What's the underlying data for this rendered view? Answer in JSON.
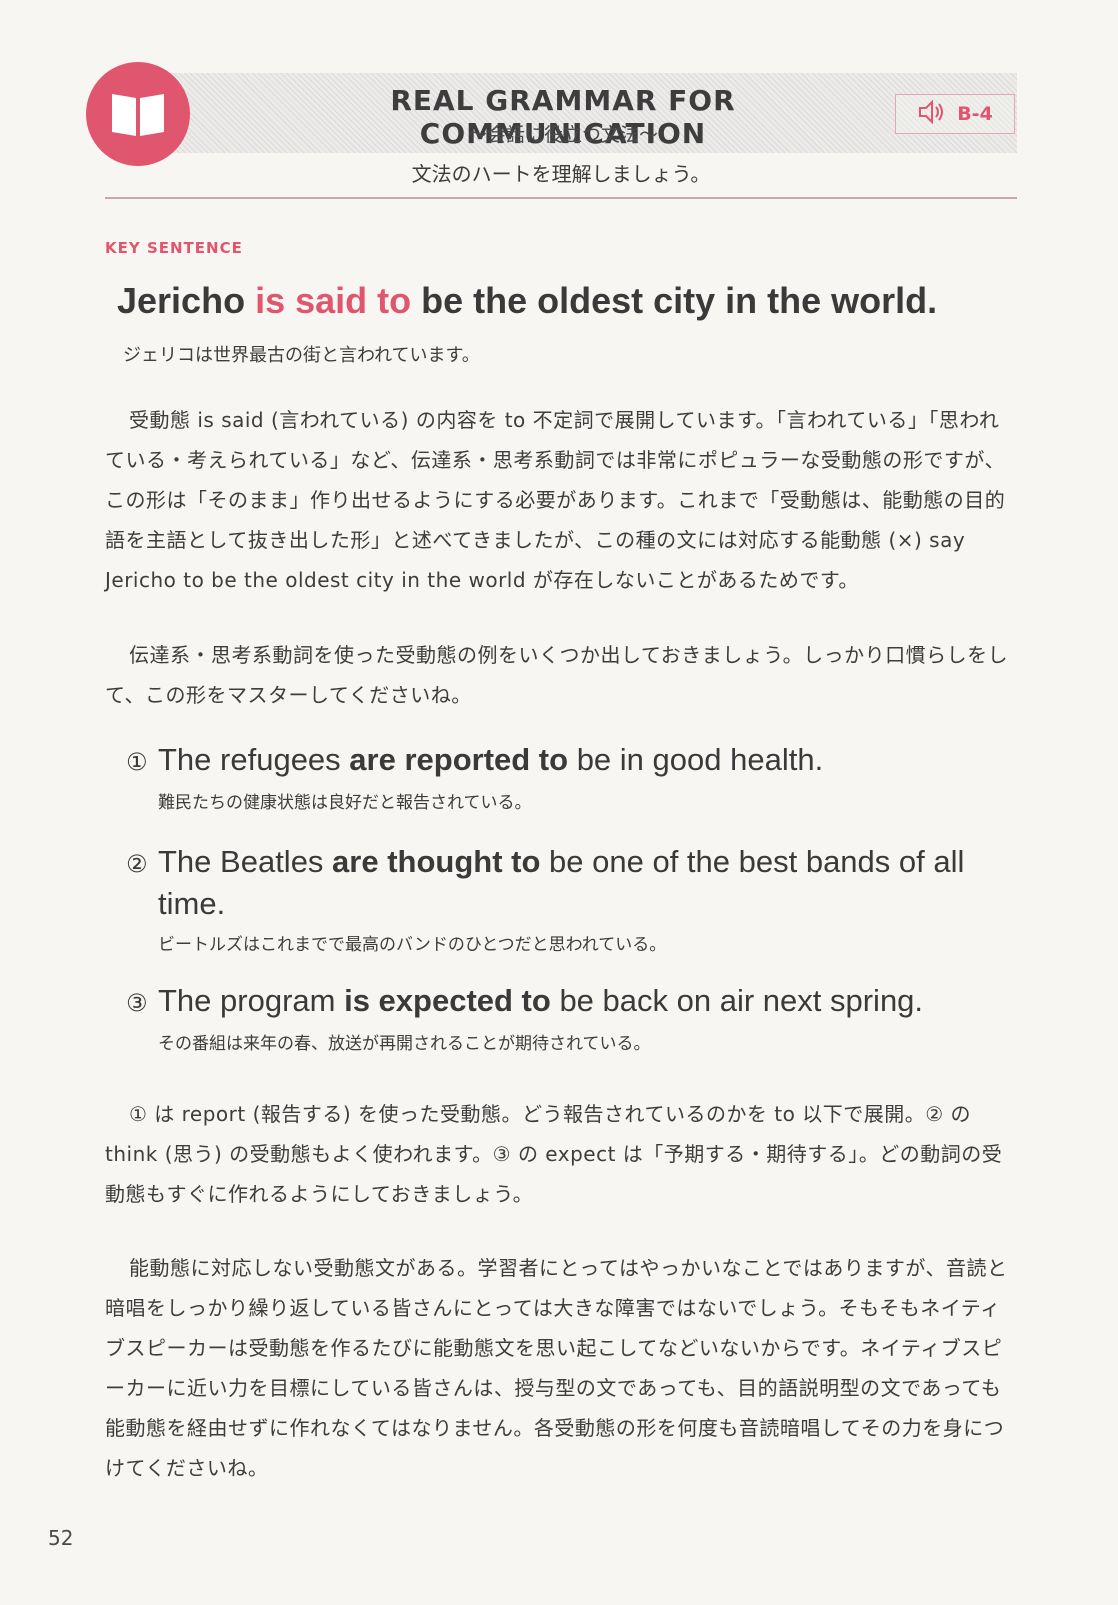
{
  "header": {
    "title": "REAL GRAMMAR FOR COMMUNICATION",
    "subtitle": "〜会話に役立つ文法〜",
    "audio_track": "B-4",
    "caption": "文法のハートを理解しましょう。"
  },
  "key_sentence": {
    "label": "KEY SENTENCE",
    "before": "Jericho ",
    "highlight": "is said to",
    "after": " be the oldest city in the world.",
    "translation": "ジェリコは世界最古の街と言われています。"
  },
  "paragraph1": "受動態 is said (言われている) の内容を to 不定詞で展開しています。「言われている」「思われている・考えられている」など、伝達系・思考系動詞では非常にポピュラーな受動態の形ですが、この形は「そのまま」作り出せるようにする必要があります。これまで「受動態は、能動態の目的語を主語として抜き出した形」と述べてきましたが、この種の文には対応する能動態 (×) say Jericho to be the oldest city in the world が存在しないことがあるためです。",
  "paragraph2": "伝達系・思考系動詞を使った受動態の例をいくつか出しておきましょう。しっかり口慣らしをして、この形をマスターしてくださいね。",
  "examples": [
    {
      "num": "①",
      "before": "The refugees ",
      "strong": "are reported to",
      "after": " be in good health.",
      "jp": "難民たちの健康状態は良好だと報告されている。"
    },
    {
      "num": "②",
      "before": "The Beatles ",
      "strong": "are thought to",
      "after": " be one of the best bands of all time.",
      "jp": "ビートルズはこれまでで最高のバンドのひとつだと思われている。"
    },
    {
      "num": "③",
      "before": "The program ",
      "strong": "is expected to",
      "after": " be back on air next spring.",
      "jp": "その番組は来年の春、放送が再開されることが期待されている。"
    }
  ],
  "paragraph3": "① は report (報告する) を使った受動態。どう報告されているのかを to 以下で展開。② の think (思う) の受動態もよく使われます。③ の expect は「予期する・期待する」。どの動詞の受動態もすぐに作れるようにしておきましょう。",
  "paragraph4": "能動態に対応しない受動態文がある。学習者にとってはやっかいなことではありますが、音読と暗唱をしっかり繰り返している皆さんにとっては大きな障害ではないでしょう。そもそもネイティブスピーカーは受動態を作るたびに能動態文を思い起こしてなどいないからです。ネイティブスピーカーに近い力を目標にしている皆さんは、授与型の文であっても、目的語説明型の文であっても能動態を経由せずに作れなくてはなりません。各受動態の形を何度も音読暗唱してその力を身につけてくださいね。",
  "page_number": "52",
  "colors": {
    "accent": "#e0566e",
    "text": "#3a3a3a",
    "rule": "#c7a6ae"
  },
  "icons": {
    "badge": "book-icon",
    "audio": "speaker-icon"
  }
}
